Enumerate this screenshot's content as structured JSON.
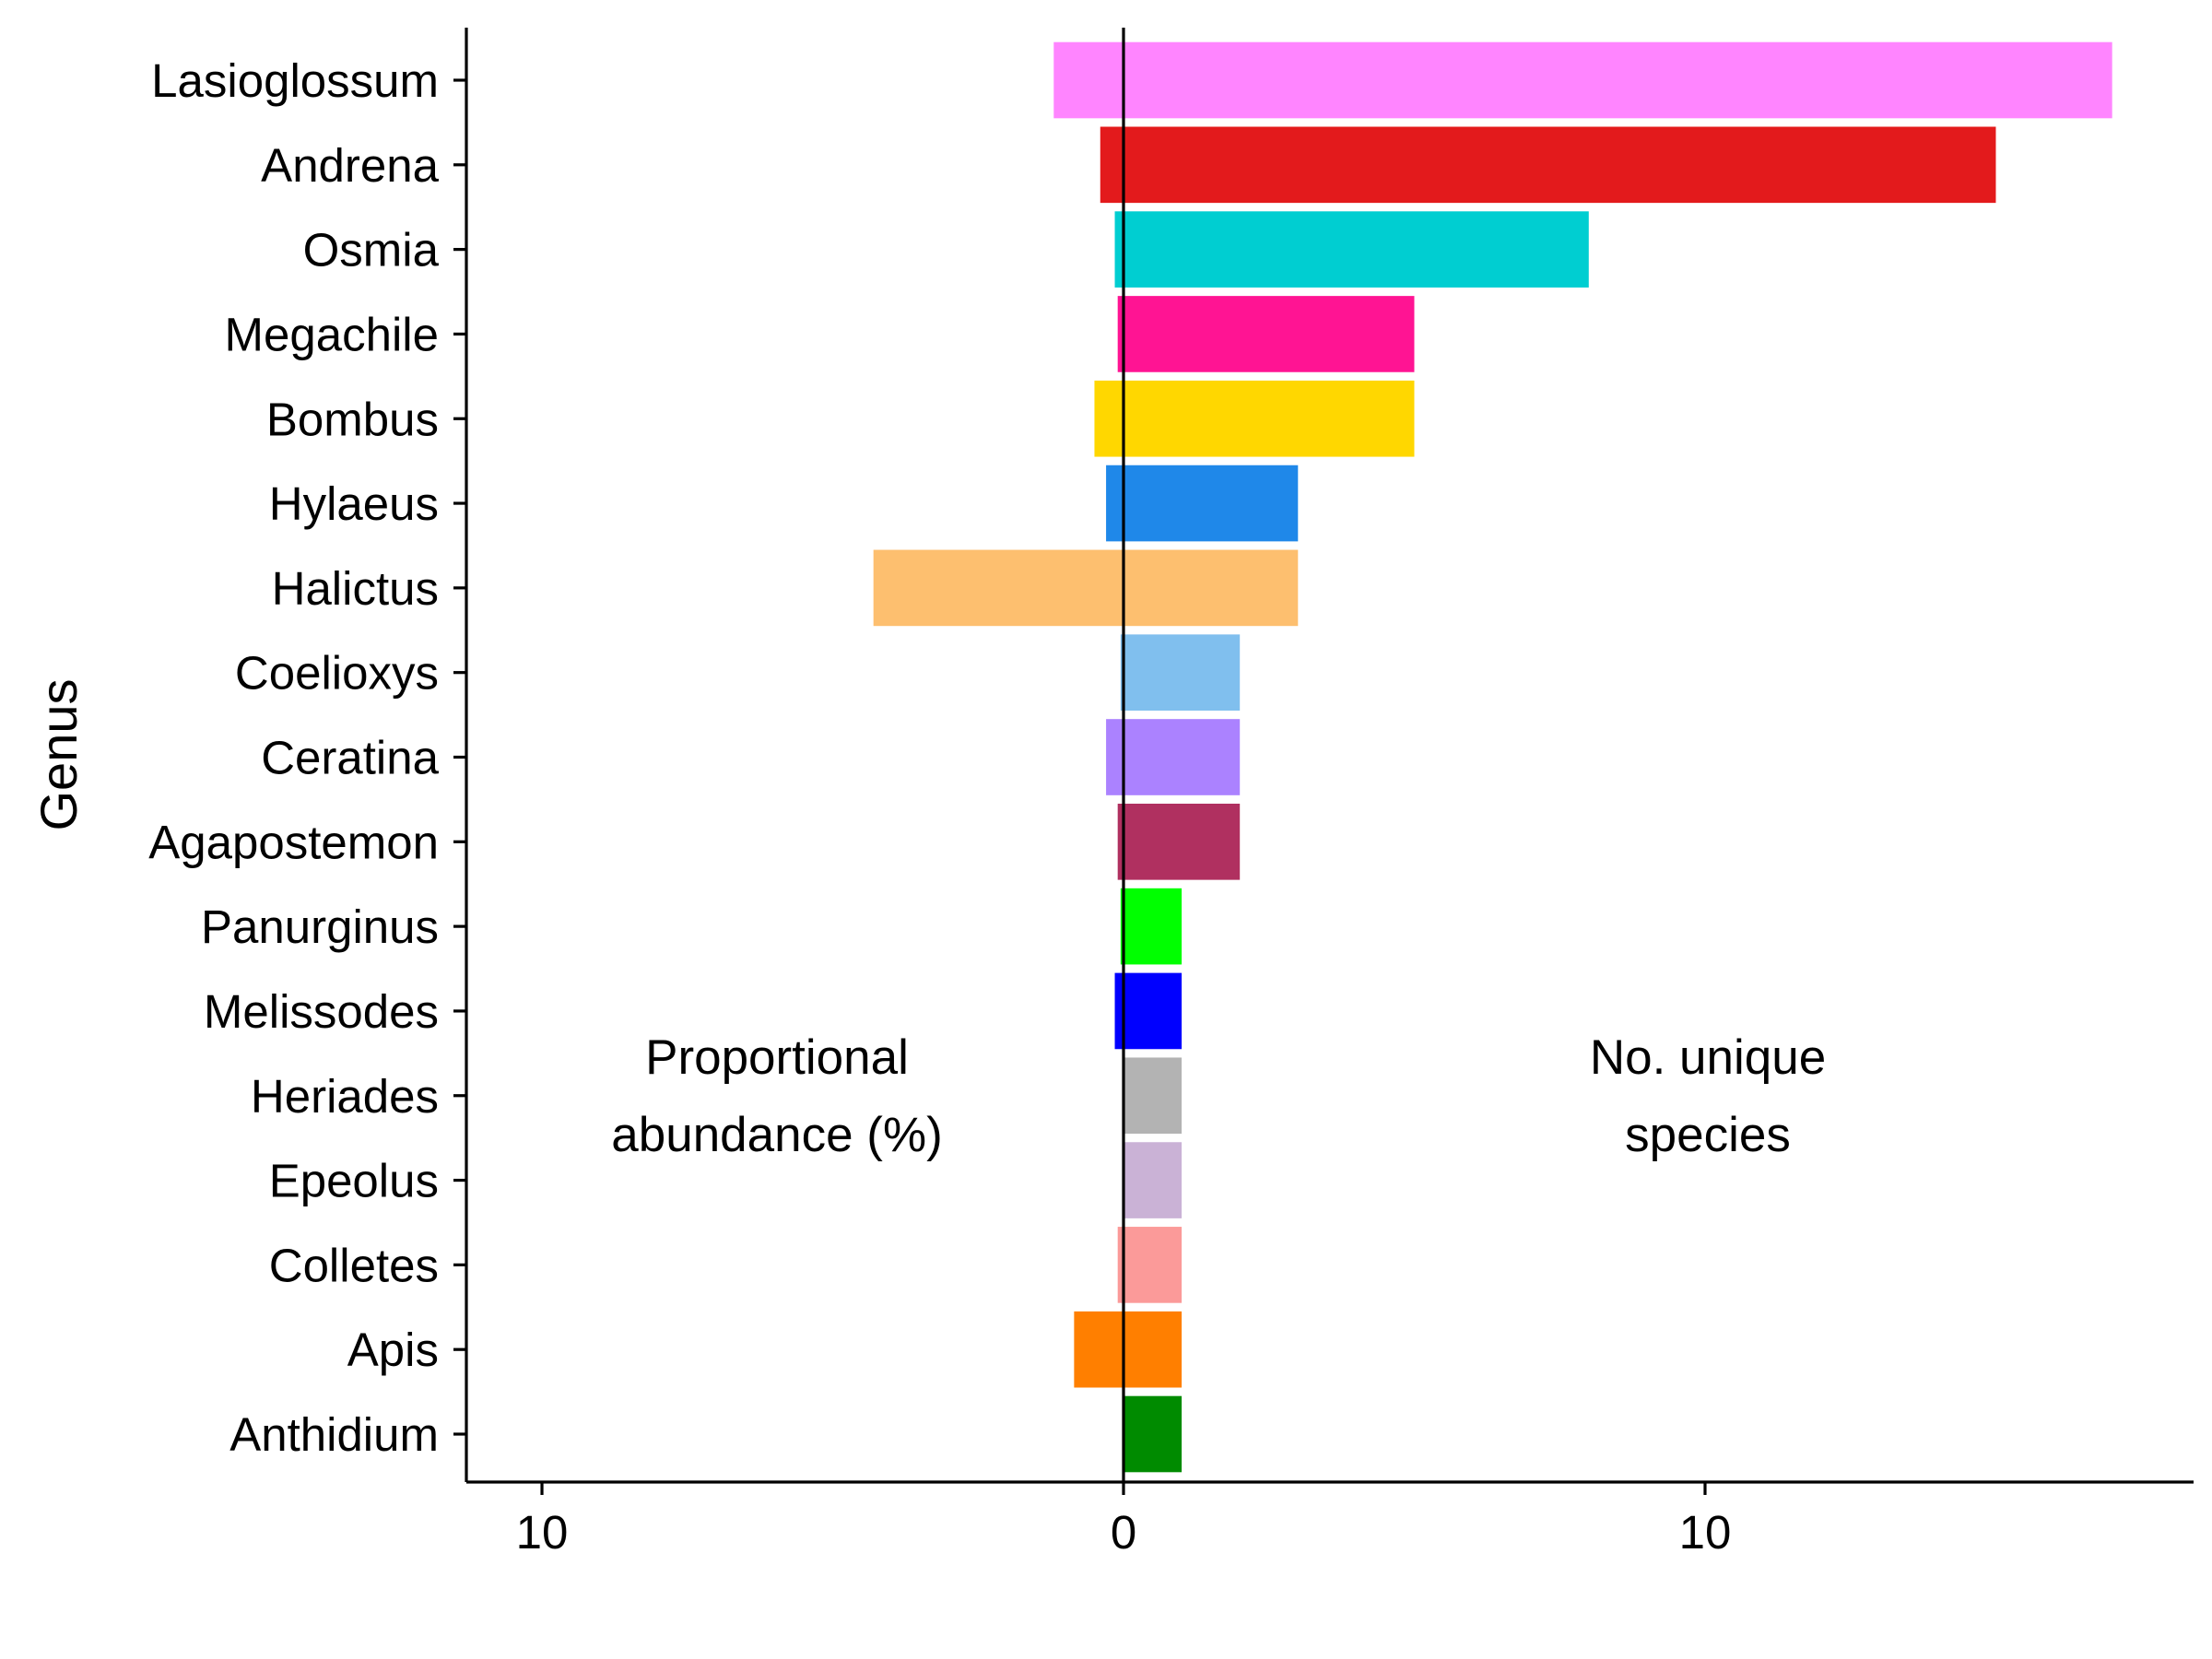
{
  "chart_data": {
    "type": "bar",
    "orientation": "horizontal",
    "layout": "diverging",
    "ylabel": "Genus",
    "xlabel": "",
    "xlim": [
      -11.3,
      18.4
    ],
    "xticks": [
      -10,
      0,
      10
    ],
    "xtick_labels": [
      "10",
      "0",
      "10"
    ],
    "annotations": [
      {
        "text": "Proportional",
        "side": "left"
      },
      {
        "text": "abundance (%)",
        "side": "left"
      },
      {
        "text": "No. unique",
        "side": "right"
      },
      {
        "text": "species",
        "side": "right"
      }
    ],
    "categories": [
      "Lasioglossum",
      "Andrena",
      "Osmia",
      "Megachile",
      "Bombus",
      "Hylaeus",
      "Halictus",
      "Coelioxys",
      "Ceratina",
      "Agapostemon",
      "Panurginus",
      "Melissodes",
      "Heriades",
      "Epeolus",
      "Colletes",
      "Apis",
      "Anthidium"
    ],
    "series": [
      {
        "name": "Proportional abundance (%)",
        "values": [
          1.2,
          0.4,
          0.15,
          0.1,
          0.5,
          0.3,
          4.3,
          0.05,
          0.3,
          0.1,
          0.05,
          0.15,
          0.0,
          0.0,
          0.1,
          0.85,
          0.0
        ]
      },
      {
        "name": "No. unique species",
        "values": [
          17,
          15,
          8,
          5,
          5,
          3,
          3,
          2,
          2,
          2,
          1,
          1,
          1,
          1,
          1,
          1,
          1
        ]
      }
    ],
    "colors": [
      "#FF85FF",
      "#E31A1C",
      "#00CED1",
      "#FF1493",
      "#FFD700",
      "#1F88E9",
      "#FDBF6F",
      "#80BFEE",
      "#AB82FF",
      "#B03060",
      "#00FF00",
      "#0000FF",
      "#B3B3B3",
      "#CAB2D6",
      "#FB9A99",
      "#FF7F00",
      "#008B00"
    ],
    "grid": false,
    "legend": "none"
  }
}
